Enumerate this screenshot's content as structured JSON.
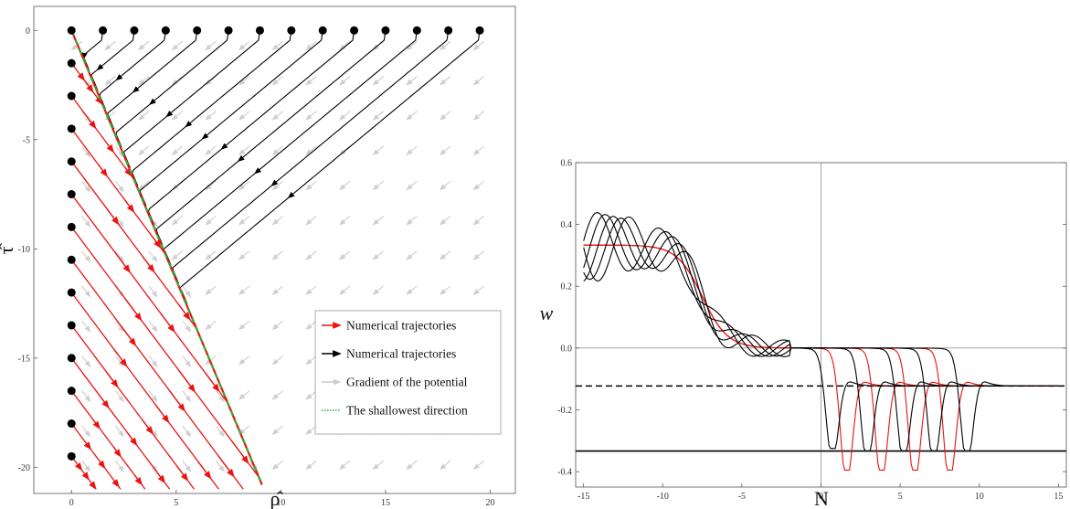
{
  "chart_data": [
    {
      "type": "scatter",
      "xlabel": "ρ̂",
      "ylabel": "τ̂",
      "xlim": [
        -1.8,
        21.2
      ],
      "ylim": [
        -21.2,
        1.1
      ],
      "x_ticks": [
        0,
        5,
        10,
        15,
        20
      ],
      "y_ticks": [
        0,
        -5,
        -10,
        -15,
        -20
      ],
      "grid": false,
      "legend_position": "bottom-right",
      "legend": [
        {
          "label": "Numerical trajectories",
          "color": "#ee1111",
          "style": "arrow"
        },
        {
          "label": "Numerical trajectories",
          "color": "#000000",
          "style": "arrow"
        },
        {
          "label": "Gradient of the potential",
          "color": "#cccccc",
          "style": "arrow"
        },
        {
          "label": "The shallowest direction",
          "color": "#33aa33",
          "style": "dotted"
        }
      ],
      "shallowest_direction": {
        "x": [
          0,
          9.1
        ],
        "y": [
          0,
          -20.8
        ]
      },
      "red_start_points": {
        "x": [
          0,
          0,
          0,
          0,
          0,
          0,
          0,
          0,
          0,
          0,
          0,
          0,
          0,
          0
        ],
        "y": [
          -1.5,
          -3,
          -4.5,
          -6,
          -7.5,
          -9,
          -10.5,
          -12,
          -13.5,
          -15,
          -16.5,
          -18,
          -19.5,
          0
        ]
      },
      "black_start_points": {
        "x": [
          1.5,
          3,
          4.5,
          6,
          7.5,
          9,
          10.5,
          12,
          13.5,
          15,
          16.5,
          18,
          19.5
        ],
        "y": [
          0,
          0,
          0,
          0,
          0,
          0,
          0,
          0,
          0,
          0,
          0,
          0,
          0
        ]
      },
      "trajectory_slope": 1.28,
      "shallow_slope": -2.286
    },
    {
      "type": "line",
      "xlabel": "N",
      "ylabel": "w",
      "xlim": [
        -15.5,
        15.5
      ],
      "ylim": [
        -0.45,
        0.6
      ],
      "x_ticks": [
        -15,
        -10,
        -5,
        0,
        5,
        10,
        15
      ],
      "y_ticks": [
        0.6,
        0.4,
        0.2,
        0.0,
        -0.2,
        -0.4
      ],
      "grid": false,
      "reference_lines": [
        {
          "y": 0,
          "style": "thin-gray"
        },
        {
          "x": 0,
          "style": "thin-gray"
        },
        {
          "y": -0.1228,
          "style": "dashed-black"
        },
        {
          "y": -0.3333,
          "style": "solid-black"
        }
      ],
      "series": [
        {
          "color": "#ee1111",
          "transition_N": 0.7,
          "min_w": -0.395
        },
        {
          "color": "#ee1111",
          "transition_N": 2.9,
          "min_w": -0.395
        },
        {
          "color": "#ee1111",
          "transition_N": 5.0,
          "min_w": -0.395
        },
        {
          "color": "#ee1111",
          "transition_N": 7.2,
          "min_w": -0.395
        },
        {
          "color": "#000000",
          "transition_N": -0.2,
          "min_w": -0.325
        },
        {
          "color": "#000000",
          "transition_N": 2.0,
          "min_w": -0.333
        },
        {
          "color": "#000000",
          "transition_N": 4.3,
          "min_w": -0.333
        },
        {
          "color": "#000000",
          "transition_N": 6.2,
          "min_w": -0.333
        },
        {
          "color": "#000000",
          "transition_N": 8.3,
          "min_w": -0.333
        }
      ]
    }
  ]
}
